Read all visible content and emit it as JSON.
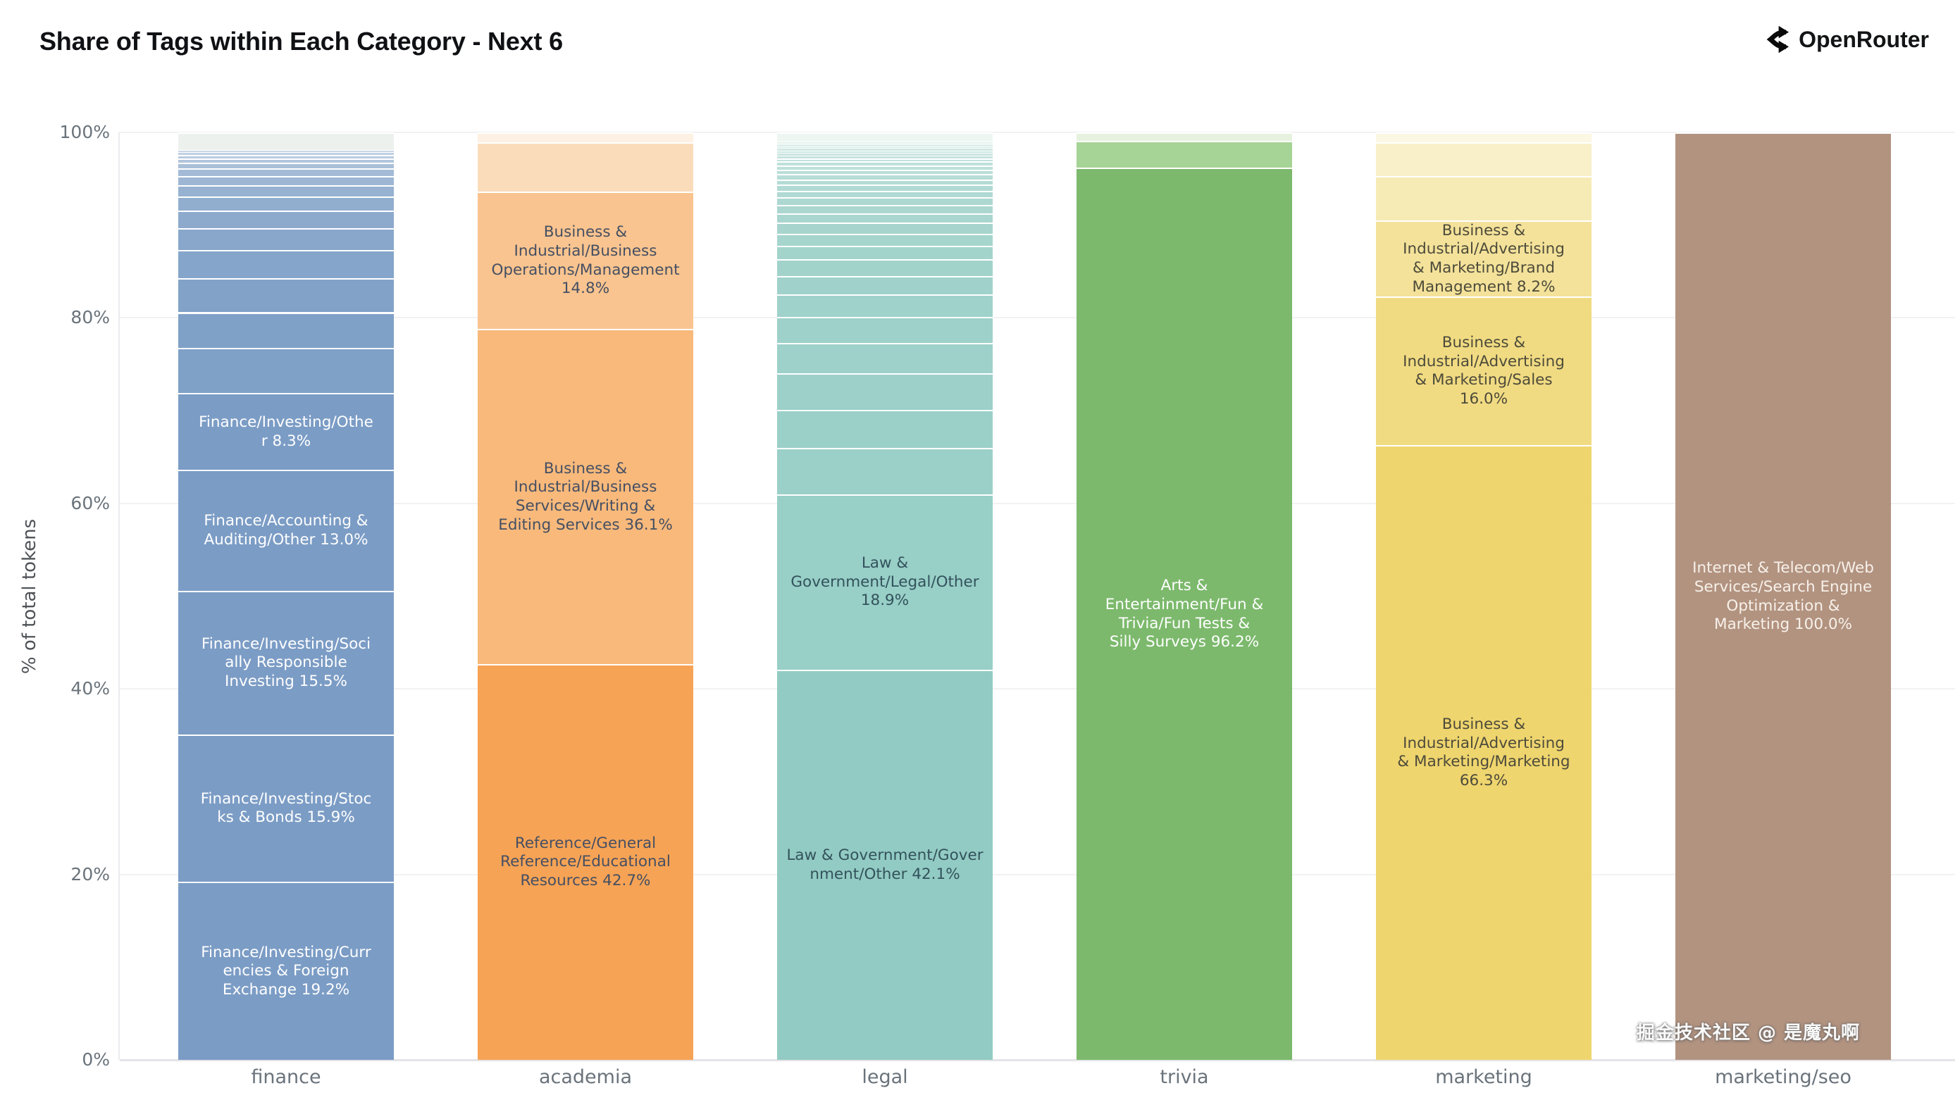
{
  "header": {
    "title": "Share of Tags within Each Category - Next 6",
    "brand": "OpenRouter"
  },
  "watermark": "掘金技术社区 @ 是魔丸啊",
  "chart_data": {
    "type": "bar",
    "stacked": true,
    "title": "Share of Tags within Each Category - Next 6",
    "xlabel": "",
    "ylabel": "% of total tokens",
    "ylim": [
      0,
      100
    ],
    "yticks": [
      "0%",
      "20%",
      "40%",
      "60%",
      "80%",
      "100%"
    ],
    "grid": true,
    "legend": false,
    "categories": [
      "finance",
      "academia",
      "legal",
      "trivia",
      "marketing",
      "marketing/seo"
    ],
    "bars": [
      {
        "category": "finance",
        "labelColor": "#ffffff",
        "segments": [
          {
            "label": "Finance/Investing/Curr\nencies & Foreign\nExchange 19.2%",
            "value": 19.2,
            "color": "#7b9cc5"
          },
          {
            "label": "Finance/Investing/Stoc\nks & Bonds 15.9%",
            "value": 15.9,
            "color": "#7b9cc5"
          },
          {
            "label": "Finance/Investing/Soci\nally Responsible\nInvesting 15.5%",
            "value": 15.5,
            "color": "#7b9cc5"
          },
          {
            "label": "Finance/Accounting &\nAuditing/Other 13.0%",
            "value": 13.0,
            "color": "#7b9cc5"
          },
          {
            "label": "Finance/Investing/Othe\nr 8.3%",
            "value": 8.3,
            "color": "#7b9cc5"
          }
        ],
        "others": {
          "values": [
            4.9,
            3.8,
            3.7,
            3.0,
            2.4,
            1.9,
            1.5,
            1.2,
            1.0,
            0.8,
            0.6,
            0.5,
            0.4,
            0.3,
            0.2
          ],
          "colorFrom": "#7fa0c7",
          "colorTo": "#c9d6e6",
          "topValue": 1.9,
          "topColor": "#edf1ee"
        }
      },
      {
        "category": "academia",
        "labelColor": "#454f63",
        "segments": [
          {
            "label": "Reference/General\nReference/Educational\nResources 42.7%",
            "value": 42.7,
            "color": "#f6a355"
          },
          {
            "label": "Business &\nIndustrial/Business\nServices/Writing &\nEditing Services 36.1%",
            "value": 36.1,
            "color": "#f8b97b"
          },
          {
            "label": "Business &\nIndustrial/Business\nOperations/Management\n14.8%",
            "value": 14.8,
            "color": "#f9c48f"
          }
        ],
        "others": {
          "values": [
            5.3
          ],
          "colorFrom": "#fbdcba",
          "colorTo": "#fbdcba",
          "topValue": 1.1,
          "topColor": "#fdf1e3"
        }
      },
      {
        "category": "legal",
        "labelColor": "#33525c",
        "segments": [
          {
            "label": "Law & Government/Gover\nnment/Other 42.1%",
            "value": 42.1,
            "color": "#92cbc3"
          },
          {
            "label": "Law &\nGovernment/Legal/Other\n18.9%",
            "value": 18.9,
            "color": "#98cfc7"
          }
        ],
        "others": {
          "values": [
            5.0,
            4.1,
            3.9,
            3.3,
            2.8,
            2.4,
            2.0,
            1.8,
            1.5,
            1.3,
            1.2,
            1.0,
            0.9,
            0.8,
            0.7,
            0.65,
            0.6,
            0.55,
            0.5,
            0.45,
            0.4,
            0.35,
            0.3,
            0.3,
            0.25,
            0.25,
            0.2,
            0.2,
            0.15,
            0.15
          ],
          "colorFrom": "#9bd0c8",
          "colorTo": "#ddeeea",
          "topValue": 1.0,
          "topColor": "#eef6f2"
        }
      },
      {
        "category": "trivia",
        "labelColor": "#ffffff",
        "segments": [
          {
            "label": "Arts &\nEntertainment/Fun &\nTrivia/Fun Tests &\nSilly Surveys 96.2%",
            "value": 96.2,
            "color": "#7cb96c"
          }
        ],
        "others": {
          "values": [
            2.9
          ],
          "colorFrom": "#a6d396",
          "colorTo": "#a6d396",
          "topValue": 0.9,
          "topColor": "#e6f2df"
        }
      },
      {
        "category": "marketing",
        "labelColor": "#4d4b3b",
        "segments": [
          {
            "label": "Business &\nIndustrial/Advertising\n& Marketing/Marketing\n66.3%",
            "value": 66.3,
            "color": "#efd56e"
          },
          {
            "label": "Business &\nIndustrial/Advertising\n& Marketing/Sales\n16.0%",
            "value": 16.0,
            "color": "#f1db82"
          },
          {
            "label": "Business &\nIndustrial/Advertising\n& Marketing/Brand\nManagement 8.2%",
            "value": 8.2,
            "color": "#f4e29a"
          }
        ],
        "others": {
          "values": [
            4.8,
            3.6
          ],
          "colorFrom": "#f7ebb5",
          "colorTo": "#f9f0ca",
          "topValue": 1.1,
          "topColor": "#fcf7e3"
        }
      },
      {
        "category": "marketing/seo",
        "labelColor": "#f7f1ea",
        "segments": [
          {
            "label": "Internet & Telecom/Web\nServices/Search Engine\nOptimization &\nMarketing 100.0%",
            "value": 100.0,
            "color": "#b29380"
          }
        ],
        "others": null
      }
    ]
  }
}
